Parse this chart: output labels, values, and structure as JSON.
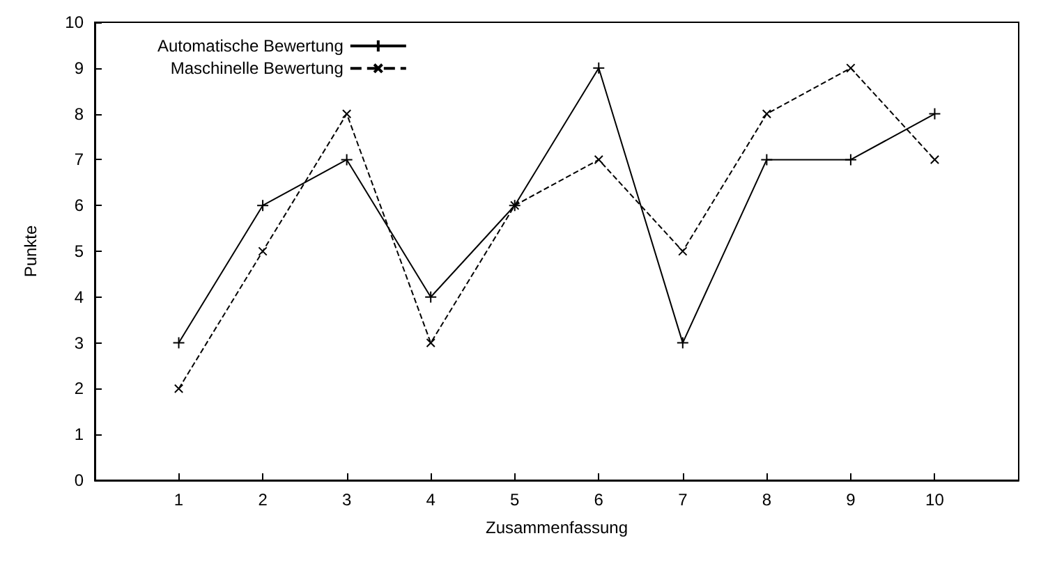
{
  "chart_data": {
    "type": "line",
    "xlabel": "Zusammenfassung",
    "ylabel": "Punkte",
    "x": [
      1,
      2,
      3,
      4,
      5,
      6,
      7,
      8,
      9,
      10
    ],
    "xlim": [
      0,
      11
    ],
    "xticks": [
      1,
      2,
      3,
      4,
      5,
      6,
      7,
      8,
      9,
      10
    ],
    "ylim": [
      0,
      10
    ],
    "yticks": [
      0,
      1,
      2,
      3,
      4,
      5,
      6,
      7,
      8,
      9,
      10
    ],
    "grid": false,
    "legend": "top left",
    "marker": "cross",
    "series": [
      {
        "name": "Automatische Bewertung",
        "color": "#000000",
        "line_style": "solid",
        "values": [
          3,
          6,
          7,
          4,
          6,
          9,
          3,
          7,
          7,
          8
        ]
      },
      {
        "name": "Maschinelle Bewertung",
        "color": "#000000",
        "line_style": "dashed",
        "values": [
          2,
          5,
          8,
          3,
          6,
          7,
          5,
          8,
          9,
          7
        ]
      }
    ]
  }
}
